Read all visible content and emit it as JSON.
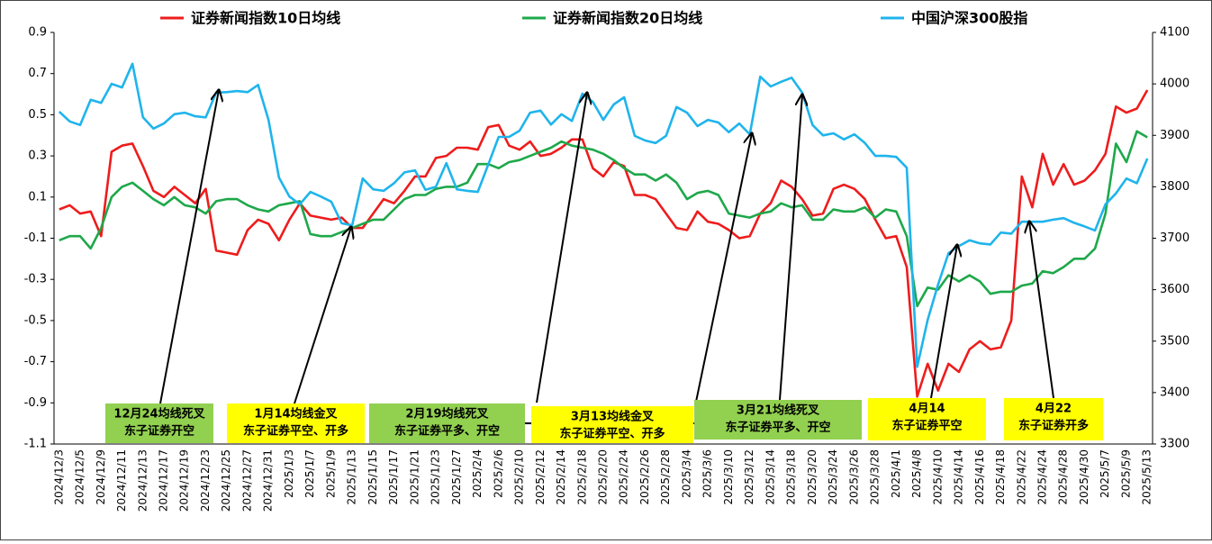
{
  "chart_data": {
    "type": "line",
    "categories": [
      "2024/12/3",
      null,
      "2024/12/5",
      null,
      "2024/12/9",
      null,
      "2024/12/11",
      null,
      "2024/12/13",
      null,
      "2024/12/17",
      null,
      "2024/12/19",
      null,
      "2024/12/23",
      null,
      "2024/12/25",
      null,
      "2024/12/27",
      null,
      "2024/12/31",
      null,
      "2025/1/3",
      null,
      "2025/1/7",
      null,
      "2025/1/9",
      null,
      "2025/1/13",
      null,
      "2025/1/15",
      null,
      "2025/1/17",
      null,
      "2025/1/21",
      null,
      "2025/1/23",
      null,
      "2025/1/27",
      null,
      "2025/2/4",
      null,
      "2025/2/6",
      null,
      "2025/2/10",
      null,
      "2025/2/12",
      null,
      "2025/2/14",
      null,
      "2025/2/18",
      null,
      "2025/2/20",
      null,
      "2025/2/24",
      null,
      "2025/2/26",
      null,
      "2025/2/28",
      null,
      "2025/3/4",
      null,
      "2025/3/6",
      null,
      "2025/3/10",
      null,
      "2025/3/12",
      null,
      "2025/3/14",
      null,
      "2025/3/18",
      null,
      "2025/3/20",
      null,
      "2025/3/24",
      null,
      "2025/3/26",
      null,
      "2025/3/28",
      null,
      "2025/4/1",
      null,
      "2025/4/8",
      null,
      "2025/4/10",
      null,
      "2025/4/14",
      null,
      "2025/4/16",
      null,
      "2025/4/18",
      null,
      "2025/4/22",
      null,
      "2025/4/24",
      null,
      "2025/4/28",
      null,
      "2025/4/30",
      null,
      "2025/5/7",
      null,
      "2025/5/9",
      null,
      "2025/5/13"
    ],
    "series": [
      {
        "name": "证券新闻指数10日均线",
        "color": "#ee1c1c",
        "values": [
          0.04,
          0.06,
          0.02,
          0.03,
          -0.09,
          0.32,
          0.35,
          0.36,
          0.25,
          0.13,
          0.1,
          0.15,
          0.11,
          0.07,
          0.14,
          -0.16,
          -0.17,
          -0.18,
          -0.06,
          -0.01,
          -0.03,
          -0.11,
          -0.01,
          0.07,
          0.01,
          0.0,
          -0.01,
          0.0,
          -0.05,
          -0.05,
          0.02,
          0.09,
          0.07,
          0.13,
          0.2,
          0.2,
          0.29,
          0.3,
          0.34,
          0.34,
          0.33,
          0.44,
          0.45,
          0.35,
          0.33,
          0.37,
          0.3,
          0.31,
          0.34,
          0.38,
          0.38,
          0.24,
          0.2,
          0.27,
          0.25,
          0.11,
          0.11,
          0.09,
          0.02,
          -0.05,
          -0.06,
          0.03,
          -0.02,
          -0.03,
          -0.06,
          -0.1,
          -0.09,
          0.02,
          0.07,
          0.18,
          0.15,
          0.09,
          0.01,
          0.02,
          0.14,
          0.16,
          0.14,
          0.09,
          -0.01,
          -0.1,
          -0.09,
          -0.24,
          -0.87,
          -0.71,
          -0.84,
          -0.71,
          -0.75,
          -0.64,
          -0.6,
          -0.64,
          -0.63,
          -0.5,
          0.2,
          0.05,
          0.31,
          0.16,
          0.26,
          0.16,
          0.18,
          0.23,
          0.31,
          0.54,
          0.51,
          0.53,
          0.62
        ]
      },
      {
        "name": "证券新闻指数20日均线",
        "color": "#1ea84a",
        "values": [
          -0.11,
          -0.09,
          -0.09,
          -0.15,
          -0.05,
          0.1,
          0.15,
          0.17,
          0.13,
          0.09,
          0.06,
          0.1,
          0.06,
          0.05,
          0.02,
          0.08,
          0.09,
          0.09,
          0.06,
          0.04,
          0.03,
          0.06,
          0.07,
          0.08,
          -0.08,
          -0.09,
          -0.09,
          -0.07,
          -0.05,
          -0.03,
          -0.01,
          -0.01,
          0.04,
          0.09,
          0.11,
          0.11,
          0.14,
          0.15,
          0.15,
          0.17,
          0.26,
          0.26,
          0.24,
          0.27,
          0.28,
          0.3,
          0.32,
          0.34,
          0.37,
          0.35,
          0.34,
          0.33,
          0.31,
          0.28,
          0.24,
          0.21,
          0.21,
          0.18,
          0.21,
          0.17,
          0.09,
          0.12,
          0.13,
          0.11,
          0.02,
          0.01,
          0.0,
          0.02,
          0.03,
          0.07,
          0.05,
          0.06,
          -0.01,
          -0.01,
          0.04,
          0.03,
          0.03,
          0.05,
          0.0,
          0.04,
          0.03,
          -0.09,
          -0.43,
          -0.34,
          -0.35,
          -0.28,
          -0.31,
          -0.28,
          -0.31,
          -0.37,
          -0.36,
          -0.36,
          -0.33,
          -0.32,
          -0.26,
          -0.27,
          -0.24,
          -0.2,
          -0.2,
          -0.15,
          0.02,
          0.36,
          0.27,
          0.42,
          0.39
        ]
      },
      {
        "name": "中国沪深300股指",
        "color": "#1fb4ec",
        "axis": "y2",
        "values": [
          3946,
          3927,
          3920,
          3969,
          3963,
          4000,
          3993,
          4039,
          3935,
          3913,
          3923,
          3941,
          3944,
          3937,
          3935,
          3983,
          3984,
          3986,
          3984,
          3998,
          3930,
          3818,
          3781,
          3766,
          3790,
          3781,
          3771,
          3729,
          3725,
          3816,
          3795,
          3792,
          3807,
          3828,
          3832,
          3794,
          3800,
          3846,
          3795,
          3792,
          3790,
          3843,
          3897,
          3897,
          3909,
          3944,
          3948,
          3921,
          3941,
          3928,
          3981,
          3965,
          3930,
          3960,
          3974,
          3899,
          3890,
          3885,
          3899,
          3955,
          3944,
          3918,
          3930,
          3925,
          3906,
          3923,
          3902,
          4014,
          3995,
          4004,
          4012,
          3983,
          3920,
          3900,
          3904,
          3892,
          3902,
          3885,
          3860,
          3860,
          3858,
          3837,
          3450,
          3541,
          3610,
          3671,
          3685,
          3696,
          3690,
          3688,
          3711,
          3709,
          3732,
          3732,
          3732,
          3736,
          3739,
          3730,
          3723,
          3715,
          3766,
          3787,
          3816,
          3807,
          3855
        ]
      }
    ],
    "ylim": [
      -1.1,
      0.9
    ],
    "yticks": [
      -1.1,
      -0.9,
      -0.7,
      -0.5,
      -0.3,
      -0.1,
      0.1,
      0.3,
      0.5,
      0.7,
      0.9
    ],
    "y2lim": [
      3300,
      4100
    ],
    "y2ticks": [
      3300,
      3400,
      3500,
      3600,
      3700,
      3800,
      3900,
      4000,
      4100
    ],
    "legend": "top",
    "grid": false,
    "annotations": [
      {
        "lines": [
          "12月24均线死叉",
          "东子证券开空"
        ],
        "color": "#92d050"
      },
      {
        "lines": [
          "1月14均线金叉",
          "东子证券平空、开多"
        ],
        "color": "#ffff00"
      },
      {
        "lines": [
          "2月19均线死叉",
          "东子证券平多、开空"
        ],
        "color": "#92d050"
      },
      {
        "lines": [
          "3月13均线金叉",
          "东子证券平空、开多"
        ],
        "color": "#ffff00"
      },
      {
        "lines": [
          "3月21均线死叉",
          "东子证券平多、开空"
        ],
        "color": "#92d050"
      },
      {
        "lines": [
          "4月14",
          "东子证券平空"
        ],
        "color": "#ffff00"
      },
      {
        "lines": [
          "4月22",
          "东子证券开多"
        ],
        "color": "#ffff00"
      }
    ]
  }
}
